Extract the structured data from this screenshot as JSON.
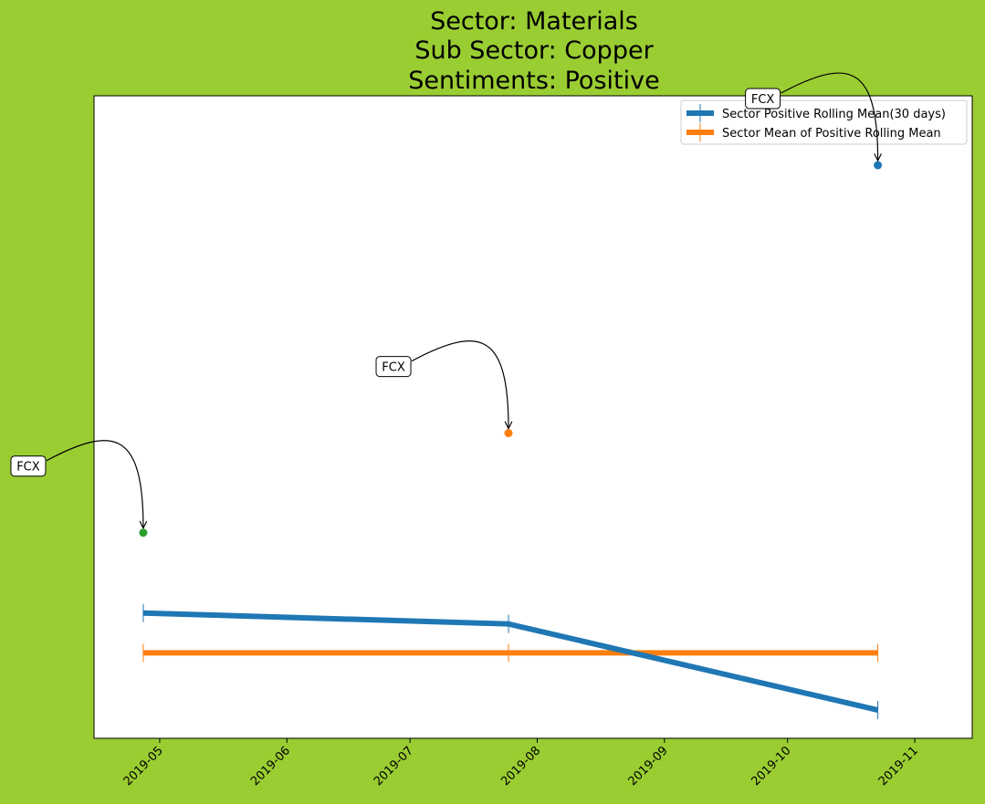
{
  "colors": {
    "figure_background": "#9acd32",
    "plot_background": "#ffffff",
    "rolling_mean": "#1f77b4",
    "mean_of_rolling_mean": "#ff7f0e",
    "point_green": "#2ca02c",
    "point_orange": "#ff7f0e",
    "point_blue": "#1f77b4"
  },
  "chart_data": {
    "type": "line",
    "title": [
      "Sector:  Materials",
      "Sub Sector:  Copper",
      "Sentiments:  Positive"
    ],
    "xlabel": "",
    "ylabel": "",
    "x_axis_type": "date",
    "xlim": [
      "2019-04-15",
      "2019-11-15"
    ],
    "ylim": [
      0,
      1
    ],
    "y_ticks_shown": false,
    "grid": false,
    "legend_position": "top-right",
    "x_tick_labels": [
      "2019-05",
      "2019-06",
      "2019-07",
      "2019-08",
      "2019-09",
      "2019-10",
      "2019-11"
    ],
    "x_tick_rotation": 45,
    "series": [
      {
        "name": "Sector Positive Rolling Mean(30 days)",
        "color": "#1f77b4",
        "marker": "vertical-tick",
        "x": [
          "2019-04-27",
          "2019-07-25",
          "2019-10-23"
        ],
        "y": [
          0.195,
          0.178,
          0.044
        ]
      },
      {
        "name": "Sector Mean of Positive Rolling Mean",
        "color": "#ff7f0e",
        "marker": "vertical-tick",
        "x": [
          "2019-04-27",
          "2019-07-25",
          "2019-10-23"
        ],
        "y": [
          0.133,
          0.133,
          0.133
        ]
      }
    ],
    "points": [
      {
        "x": "2019-04-27",
        "y": 0.32,
        "color": "#2ca02c",
        "label": "FCX"
      },
      {
        "x": "2019-07-25",
        "y": 0.475,
        "color": "#ff7f0e",
        "label": "FCX"
      },
      {
        "x": "2019-10-23",
        "y": 0.892,
        "color": "#1f77b4",
        "label": "FCX"
      }
    ]
  }
}
